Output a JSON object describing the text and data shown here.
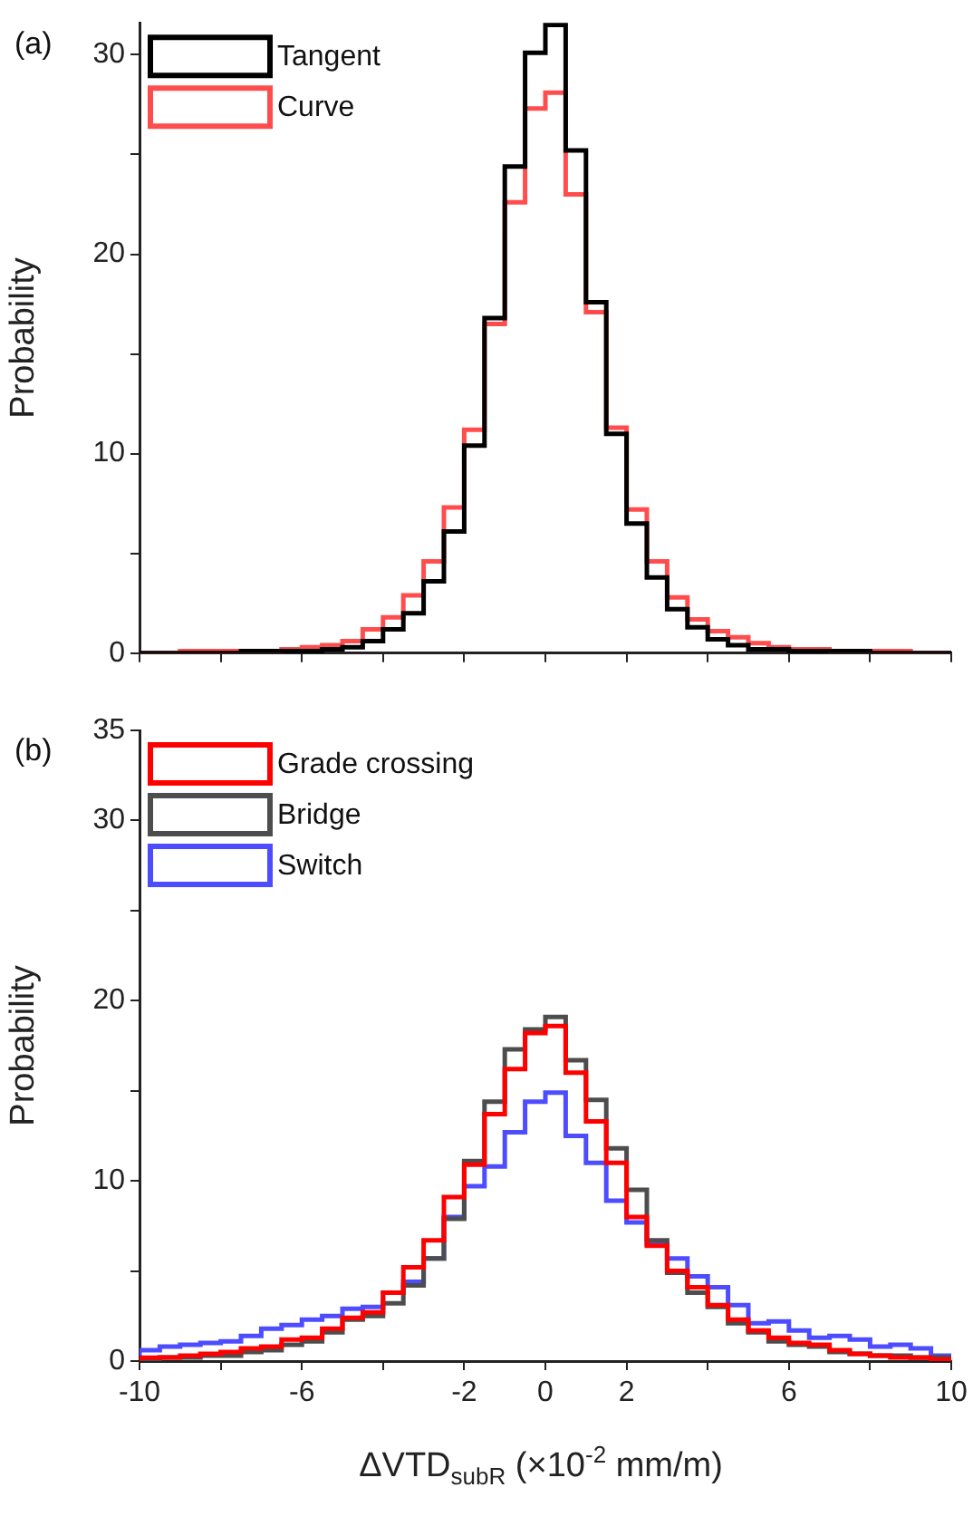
{
  "chart_data": [
    {
      "type": "histogram",
      "ylabel": "Probability",
      "annotations": [
        "(a)"
      ],
      "legend": "top left",
      "tick_labels": "y",
      "grid": false,
      "bins": [
        -10,
        -9.5,
        -9,
        -8.5,
        -8,
        -7.5,
        -7,
        -6.5,
        -6,
        -5.5,
        -5,
        -4.5,
        -4,
        -3.5,
        -3,
        -2.5,
        -2,
        -1.5,
        -1,
        -0.5,
        0,
        0.5,
        1,
        1.5,
        2,
        2.5,
        3,
        3.5,
        4,
        4.5,
        5,
        5.5,
        6,
        6.5,
        7,
        7.5,
        8,
        8.5,
        9,
        9.5,
        10
      ],
      "xlim": [
        -10,
        10
      ],
      "xticks": [
        -10,
        {
          "value": -8,
          "label": null
        },
        -6,
        {
          "value": -4,
          "label": null
        },
        -2,
        0,
        2,
        {
          "value": 4,
          "label": null
        },
        6,
        {
          "value": 8,
          "label": null
        },
        10
      ],
      "ylim": [
        0,
        31.6
      ],
      "yticks": [
        0,
        {
          "value": 5,
          "label": null
        },
        10,
        {
          "value": 15,
          "label": null
        },
        20,
        {
          "value": 25,
          "label": null
        },
        30
      ],
      "series": [
        {
          "name": "Tangent",
          "color": "#000000",
          "values": [
            0,
            0,
            0,
            0,
            0,
            0.1,
            0.1,
            0.1,
            0.1,
            0.2,
            0.3,
            0.6,
            1.2,
            2.0,
            3.6,
            6.1,
            10.4,
            16.8,
            24.4,
            30.1,
            31.5,
            25.2,
            17.6,
            11.0,
            6.5,
            3.8,
            2.2,
            1.3,
            0.7,
            0.4,
            0.2,
            0.2,
            0.1,
            0.1,
            0.1,
            0.1,
            0,
            0,
            0,
            0
          ]
        },
        {
          "name": "Curve",
          "color": "#ff4d4d",
          "values": [
            0,
            0,
            0.1,
            0.1,
            0.1,
            0.1,
            0.1,
            0.2,
            0.3,
            0.4,
            0.6,
            1.2,
            1.8,
            2.9,
            4.6,
            7.3,
            11.2,
            16.5,
            22.6,
            27.3,
            28.1,
            23.0,
            17.1,
            11.3,
            7.2,
            4.6,
            2.8,
            1.7,
            1.1,
            0.8,
            0.5,
            0.3,
            0.2,
            0.2,
            0.1,
            0.1,
            0.1,
            0.1,
            0,
            0
          ]
        }
      ]
    },
    {
      "type": "histogram",
      "ylabel": "Probability",
      "xlabel": "ΔVTD$_{subR}$ (×10$^{-2}$ mm/m)",
      "annotations": [
        "(b)"
      ],
      "legend": "top left",
      "grid": false,
      "bins": [
        -10,
        -9.5,
        -9,
        -8.5,
        -8,
        -7.5,
        -7,
        -6.5,
        -6,
        -5.5,
        -5,
        -4.5,
        -4,
        -3.5,
        -3,
        -2.5,
        -2,
        -1.5,
        -1,
        -0.5,
        0,
        0.5,
        1,
        1.5,
        2,
        2.5,
        3,
        3.5,
        4,
        4.5,
        5,
        5.5,
        6,
        6.5,
        7,
        7.5,
        8,
        8.5,
        9,
        9.5,
        10
      ],
      "xlim": [
        -10,
        10
      ],
      "xticks": [
        -10,
        {
          "value": -8,
          "label": null
        },
        -6,
        {
          "value": -4,
          "label": null
        },
        -2,
        0,
        2,
        {
          "value": 4,
          "label": null
        },
        6,
        {
          "value": 8,
          "label": null
        },
        10
      ],
      "ylim": [
        0,
        35
      ],
      "yticks": [
        0,
        {
          "value": 5,
          "label": null
        },
        10,
        {
          "value": 15,
          "label": null
        },
        20,
        {
          "value": 25,
          "label": null
        },
        30,
        35
      ],
      "series": [
        {
          "name": "Grade crossing",
          "color": "#ff0000",
          "values": [
            0.19,
            0.2,
            0.3,
            0.4,
            0.5,
            0.7,
            0.8,
            1.2,
            1.3,
            1.8,
            2.4,
            2.7,
            3.8,
            5.2,
            6.7,
            9.1,
            10.9,
            13.7,
            16.2,
            18.2,
            18.6,
            16.0,
            13.3,
            11.0,
            8.0,
            6.4,
            5.0,
            4.1,
            3.1,
            2.3,
            1.7,
            1.3,
            1.0,
            0.9,
            0.6,
            0.4,
            0.3,
            0.2,
            0.19,
            0.09
          ]
        },
        {
          "name": "Bridge",
          "color": "#4d4d4d",
          "values": [
            0.1,
            0.2,
            0.2,
            0.3,
            0.3,
            0.5,
            0.6,
            0.9,
            1.1,
            1.6,
            2.3,
            2.5,
            3.2,
            4.2,
            5.7,
            7.9,
            11.1,
            14.4,
            17.3,
            18.4,
            19.1,
            16.7,
            14.5,
            11.8,
            9.5,
            6.7,
            4.9,
            3.8,
            3.0,
            2.1,
            1.6,
            1.1,
            0.9,
            0.8,
            0.5,
            0.4,
            0.3,
            0.3,
            0.2,
            0.2
          ]
        },
        {
          "name": "Switch",
          "color": "#4d4dff",
          "values": [
            0.6,
            0.8,
            0.9,
            1.0,
            1.1,
            1.4,
            1.8,
            2.0,
            2.3,
            2.5,
            2.9,
            3.0,
            3.8,
            4.4,
            5.7,
            8.0,
            9.7,
            10.8,
            12.7,
            14.4,
            14.9,
            12.5,
            11.0,
            8.9,
            7.7,
            6.5,
            5.7,
            4.7,
            4.1,
            3.1,
            2.1,
            2.2,
            1.7,
            1.3,
            1.4,
            1.2,
            0.8,
            0.9,
            0.7,
            0.3
          ]
        }
      ]
    }
  ]
}
